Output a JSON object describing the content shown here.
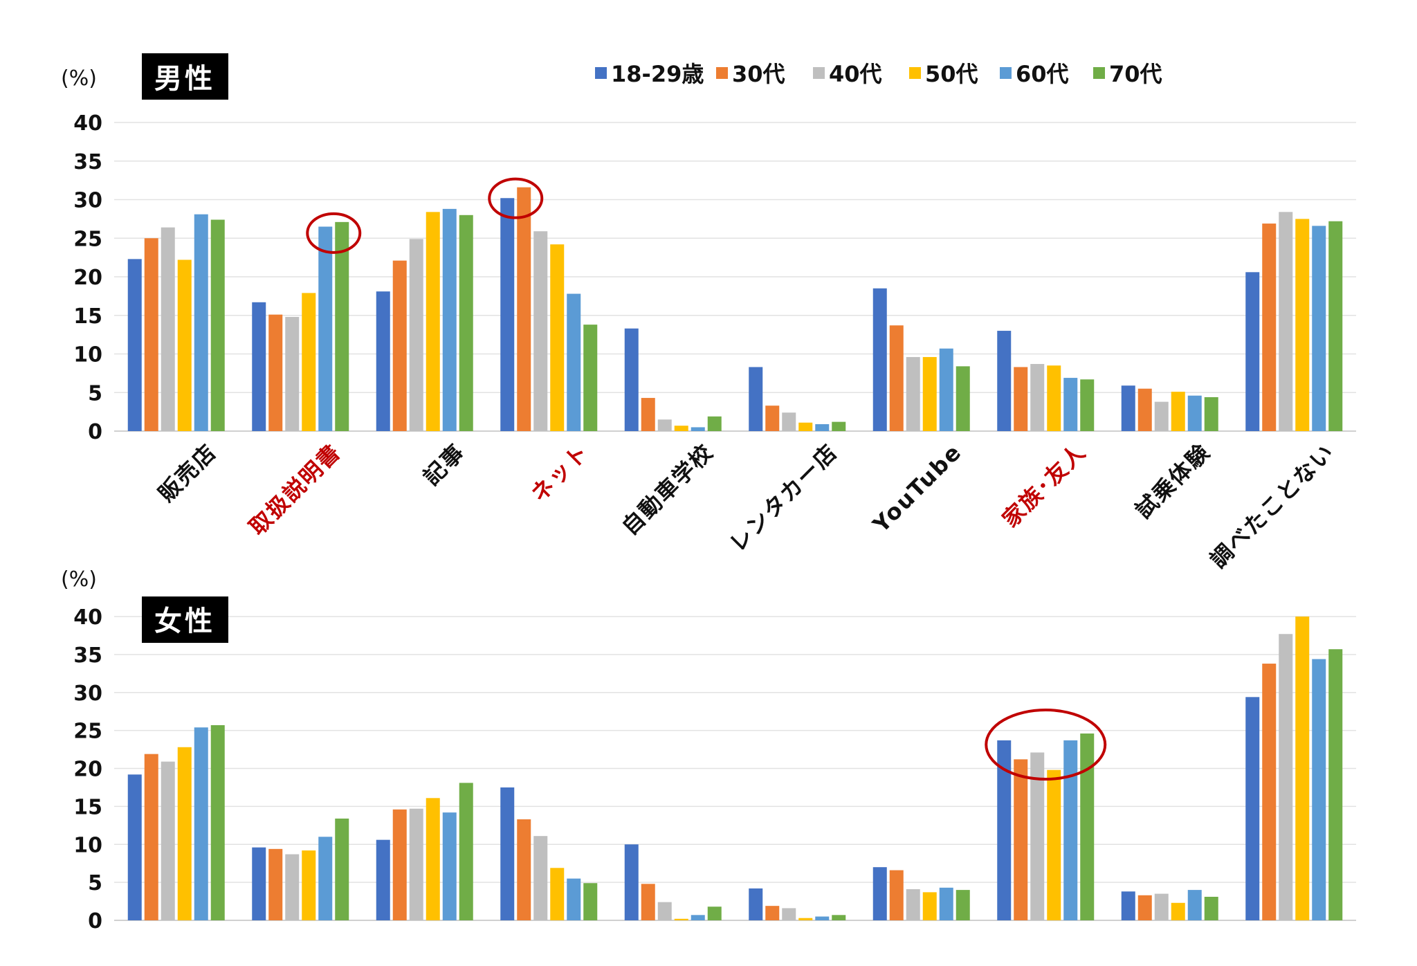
{
  "unit_label": "(%)",
  "colors": [
    "#4472C4",
    "#ED7D31",
    "#BFBFBF",
    "#FFC000",
    "#5B9BD5",
    "#70AD47"
  ],
  "highlight_color": "#C00000",
  "chart_data": [
    {
      "type": "bar",
      "title": "男性",
      "ylabel": "(%)",
      "ylim": [
        0,
        40
      ],
      "yticks": [
        0,
        5,
        10,
        15,
        20,
        25,
        30,
        35,
        40
      ],
      "legend_position": "top-right",
      "categories": [
        "販売店",
        "取扱説明書",
        "記事",
        "ネット",
        "自動車学校",
        "レンタカー店",
        "YouTube",
        "家族･友人",
        "試乗体験",
        "調べたことない"
      ],
      "highlighted_categories": [
        "取扱説明書",
        "ネット",
        "家族･友人"
      ],
      "series": [
        {
          "name": "18-29歳",
          "values": [
            22.3,
            16.7,
            18.1,
            30.2,
            13.3,
            8.3,
            18.5,
            13.0,
            5.9,
            20.6
          ]
        },
        {
          "name": "30代",
          "values": [
            25.0,
            15.1,
            22.1,
            31.6,
            4.3,
            3.3,
            13.7,
            8.3,
            5.5,
            26.9
          ]
        },
        {
          "name": "40代",
          "values": [
            26.4,
            14.8,
            24.9,
            25.9,
            1.5,
            2.4,
            9.6,
            8.7,
            3.8,
            28.4
          ]
        },
        {
          "name": "50代",
          "values": [
            22.2,
            17.9,
            28.4,
            24.2,
            0.7,
            1.1,
            9.6,
            8.5,
            5.1,
            27.5
          ]
        },
        {
          "name": "60代",
          "values": [
            28.1,
            26.5,
            28.8,
            17.8,
            0.5,
            0.9,
            10.7,
            6.9,
            4.6,
            26.6
          ]
        },
        {
          "name": "70代",
          "values": [
            27.4,
            27.1,
            28.0,
            13.8,
            1.9,
            1.2,
            8.4,
            6.7,
            4.4,
            27.2
          ]
        }
      ],
      "annotations": [
        {
          "type": "ellipse",
          "category": "取扱説明書",
          "series": [
            "60代",
            "70代"
          ]
        },
        {
          "type": "ellipse",
          "category": "ネット",
          "series": [
            "18-29歳",
            "30代"
          ]
        }
      ]
    },
    {
      "type": "bar",
      "title": "女性",
      "ylabel": "(%)",
      "ylim": [
        0,
        40
      ],
      "yticks": [
        0,
        5,
        10,
        15,
        20,
        25,
        30,
        35,
        40
      ],
      "categories": [
        "販売店",
        "取扱説明書",
        "記事",
        "ネット",
        "自動車学校",
        "レンタカー店",
        "YouTube",
        "家族･友人",
        "試乗体験",
        "調べたことない"
      ],
      "series": [
        {
          "name": "18-29歳",
          "values": [
            19.2,
            9.6,
            10.6,
            17.5,
            10.0,
            4.2,
            7.0,
            23.7,
            3.8,
            29.4
          ]
        },
        {
          "name": "30代",
          "values": [
            21.9,
            9.4,
            14.6,
            13.3,
            4.8,
            1.9,
            6.6,
            21.2,
            3.3,
            33.8
          ]
        },
        {
          "name": "40代",
          "values": [
            20.9,
            8.7,
            14.7,
            11.1,
            2.4,
            1.6,
            4.1,
            22.1,
            3.5,
            37.7
          ]
        },
        {
          "name": "50代",
          "values": [
            22.8,
            9.2,
            16.1,
            6.9,
            0.2,
            0.3,
            3.7,
            19.8,
            2.3,
            40.0
          ]
        },
        {
          "name": "60代",
          "values": [
            25.4,
            11.0,
            14.2,
            5.5,
            0.7,
            0.5,
            4.3,
            23.7,
            4.0,
            34.4
          ]
        },
        {
          "name": "70代",
          "values": [
            25.7,
            13.4,
            18.1,
            4.9,
            1.8,
            0.7,
            4.0,
            24.6,
            3.1,
            35.7
          ]
        }
      ],
      "annotations": [
        {
          "type": "ellipse",
          "category": "家族･友人",
          "series": [
            "18-29歳",
            "30代",
            "40代",
            "50代",
            "60代",
            "70代"
          ]
        }
      ]
    }
  ]
}
